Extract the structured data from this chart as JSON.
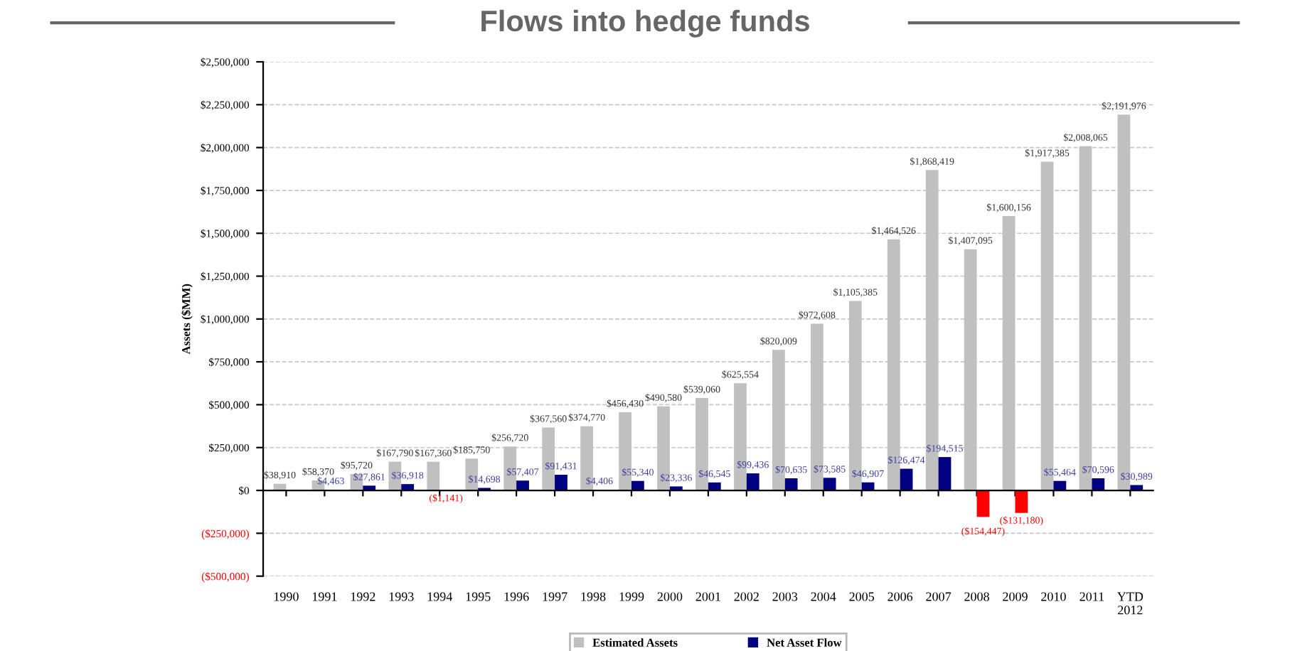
{
  "chart_data": {
    "type": "bar",
    "title": "Flows into hedge funds",
    "ylabel": "Assets ($MM)",
    "categories": [
      "1990",
      "1991",
      "1992",
      "1993",
      "1994",
      "1995",
      "1996",
      "1997",
      "1998",
      "1999",
      "2000",
      "2001",
      "2002",
      "2003",
      "2004",
      "2005",
      "2006",
      "2007",
      "2008",
      "2009",
      "2010",
      "2011",
      "YTD\n2012"
    ],
    "series": [
      {
        "name": "Estimated Assets",
        "color": "#c0c0c0",
        "values": [
          38910,
          58370,
          95720,
          167790,
          167360,
          185750,
          256720,
          367560,
          374770,
          456430,
          490580,
          539060,
          625554,
          820009,
          972608,
          1105385,
          1464526,
          1868419,
          1407095,
          1600156,
          1917385,
          2008065,
          2191976
        ],
        "value_labels": [
          "$38,910",
          "$58,370",
          "$95,720",
          "$167,790",
          "$167,360",
          "$185,750",
          "$256,720",
          "$367,560",
          "$374,770",
          "$456,430",
          "$490,580",
          "$539,060",
          "$625,554",
          "$820,009",
          "$972,608",
          "$1,105,385",
          "$1,464,526",
          "$1,868,419",
          "$1,407,095",
          "$1,600,156",
          "$1,917,385",
          "$2,008,065",
          "$2,191,976"
        ]
      },
      {
        "name": "Net Asset Flow",
        "color": "#000080",
        "colors": [
          "#000080",
          "#000080",
          "#000080",
          "#000080",
          "#ff0000",
          "#000080",
          "#000080",
          "#000080",
          "#000080",
          "#000080",
          "#000080",
          "#000080",
          "#000080",
          "#000080",
          "#000080",
          "#000080",
          "#000080",
          "#000080",
          "#ff0000",
          "#ff0000",
          "#000080",
          "#000080",
          "#000080"
        ],
        "values": [
          null,
          4463,
          27861,
          36918,
          -1141,
          14698,
          57407,
          91431,
          4406,
          55340,
          23336,
          46545,
          99436,
          70635,
          73585,
          46907,
          126474,
          194515,
          -154447,
          -131180,
          55464,
          70596,
          30989
        ],
        "value_labels": [
          null,
          "$4,463",
          "$27,861",
          "$36,918",
          "($1,141)",
          "$14,698",
          "$57,407",
          "$91,431",
          "$4,406",
          "$55,340",
          "$23,336",
          "$46,545",
          "$99,436",
          "$70,635",
          "$73,585",
          "$46,907",
          "$126,474",
          "$194,515",
          "($154,447)",
          "($131,180)",
          "$55,464",
          "$70,596",
          "$30,989"
        ]
      }
    ],
    "ylim": [
      -500000,
      2500000
    ],
    "yticks": [
      {
        "value": -500000,
        "label": "($500,000)"
      },
      {
        "value": -250000,
        "label": "($250,000)"
      },
      {
        "value": 0,
        "label": "$0"
      },
      {
        "value": 250000,
        "label": "$250,000"
      },
      {
        "value": 500000,
        "label": "$500,000"
      },
      {
        "value": 750000,
        "label": "$750,000"
      },
      {
        "value": 1000000,
        "label": "$1,000,000"
      },
      {
        "value": 1250000,
        "label": "$1,250,000"
      },
      {
        "value": 1500000,
        "label": "$1,500,000"
      },
      {
        "value": 1750000,
        "label": "$1,750,000"
      },
      {
        "value": 2000000,
        "label": "$2,000,000"
      },
      {
        "value": 2250000,
        "label": "$2,250,000"
      },
      {
        "value": 2500000,
        "label": "$2,500,000"
      }
    ],
    "grid": "y",
    "legend": "bottom"
  }
}
